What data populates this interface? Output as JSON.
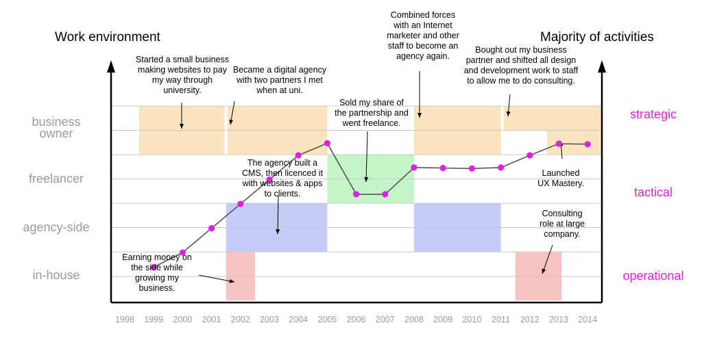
{
  "chart_data": {
    "type": "line",
    "left_axis_title": "Work environment",
    "right_axis_title": "Majority of activities",
    "rows": [
      "business owner",
      "freelancer",
      "agency-side",
      "in-house"
    ],
    "right_labels": [
      "strategic",
      "tactical",
      "operational"
    ],
    "years": [
      "1998",
      "1999",
      "2000",
      "2001",
      "2002",
      "2003",
      "2004",
      "2005",
      "2006",
      "2007",
      "2008",
      "2009",
      "2010",
      "2011",
      "2012",
      "2013",
      "2014"
    ],
    "series": [
      {
        "points": [
          {
            "x": 1999,
            "y": 1.2
          },
          {
            "x": 2000,
            "y": 1.5
          },
          {
            "x": 2001,
            "y": 2.0
          },
          {
            "x": 2002,
            "y": 2.5
          },
          {
            "x": 2003,
            "y": 3.0
          },
          {
            "x": 2004,
            "y": 3.5
          },
          {
            "x": 2005,
            "y": 3.75
          },
          {
            "x": 2006,
            "y": 2.7
          },
          {
            "x": 2007,
            "y": 2.7
          },
          {
            "x": 2008,
            "y": 3.25
          },
          {
            "x": 2009,
            "y": 3.24
          },
          {
            "x": 2010,
            "y": 3.23
          },
          {
            "x": 2011,
            "y": 3.25
          },
          {
            "x": 2012,
            "y": 3.5
          },
          {
            "x": 2013,
            "y": 3.74
          },
          {
            "x": 2014,
            "y": 3.73
          }
        ]
      }
    ],
    "bands": [
      {
        "start": 1998.5,
        "end": 2001.45,
        "row": "business owner",
        "color": "#f9e4bd"
      },
      {
        "start": 2001.55,
        "end": 2005.0,
        "row": "business owner",
        "color": "#f9e4bd"
      },
      {
        "start": 2005.0,
        "end": 2008.0,
        "row": "freelancer",
        "color": "#c6f4c9"
      },
      {
        "start": 2001.5,
        "end": 2005.0,
        "row": "agency-side",
        "color": "#c6ccf8"
      },
      {
        "start": 2008.0,
        "end": 2011.0,
        "row": "business owner",
        "color": "#f9e4bd"
      },
      {
        "start": 2008.0,
        "end": 2011.0,
        "row": "agency-side",
        "color": "#c6ccf8"
      },
      {
        "start": 2011.1,
        "end": 2014.5,
        "row": "business owner",
        "color": "#f9e4bd",
        "lower_start": 2012.6
      },
      {
        "start": 2001.5,
        "end": 2002.5,
        "row": "in-house",
        "color": "#f7c3c3"
      },
      {
        "start": 2011.5,
        "end": 2013.1,
        "row": "in-house",
        "color": "#f7c3c3"
      }
    ],
    "annotations": [
      {
        "lines": [
          "Started a small business",
          "making websites to pay",
          "my way through",
          "university."
        ]
      },
      {
        "lines": [
          "Became a digital agency",
          "with two partners I met",
          "when at uni."
        ]
      },
      {
        "lines": [
          "The agency built a",
          "CMS, then licenced it",
          "with websites & apps",
          "to clients."
        ]
      },
      {
        "lines": [
          "Sold my share of",
          "the partnership and",
          "went freelance."
        ]
      },
      {
        "lines": [
          "Combined forces",
          "with an Internet",
          "marketer and other",
          "staff to become an",
          "agency again."
        ]
      },
      {
        "lines": [
          "Bought out my business",
          "partner and shifted all design",
          "and development work to staff",
          "to allow me to do consulting."
        ]
      },
      {
        "lines": [
          "Launched",
          "UX Mastery."
        ]
      },
      {
        "lines": [
          "Consulting",
          "role at large",
          "company."
        ]
      },
      {
        "lines": [
          "Earning money on",
          "the side while",
          "growing my",
          "business."
        ]
      }
    ],
    "colors": {
      "accent": "#e020e0",
      "line": "#555555",
      "axis": "#000000",
      "row_label": "#9a9a9a",
      "grid": "#c8c8c8"
    }
  }
}
